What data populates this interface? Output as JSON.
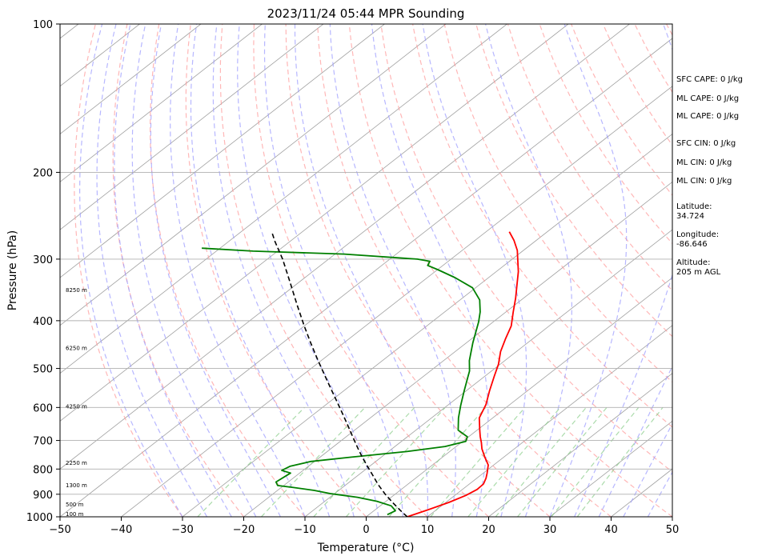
{
  "chart_data": {
    "type": "line",
    "title": "2023/11/24 05:44 MPR Sounding",
    "xlabel": "Temperature (°C)",
    "ylabel": "Pressure (hPa)",
    "xlim": [
      -50,
      50
    ],
    "ylim": [
      1000,
      100
    ],
    "y_scale": "log",
    "skew": "skew-T",
    "x_ticks": [
      "−50",
      "−40",
      "−30",
      "−20",
      "−10",
      "0",
      "10",
      "20",
      "30",
      "40",
      "50"
    ],
    "x_tick_values": [
      -50,
      -40,
      -30,
      -20,
      -10,
      0,
      10,
      20,
      30,
      40,
      50
    ],
    "y_ticks": [
      "100",
      "200",
      "300",
      "400",
      "500",
      "600",
      "700",
      "800",
      "900",
      "1000"
    ],
    "y_tick_values": [
      100,
      200,
      300,
      400,
      500,
      600,
      700,
      800,
      900,
      1000
    ],
    "grid": true,
    "colors": {
      "temperature": "#ff0000",
      "dewpoint": "#008000",
      "parcel": "#000000",
      "isotherm": "#a0a0a0",
      "dry_adiabat": "#ff9999",
      "moist_adiabat": "#9999ff",
      "mixing_ratio": "#88cc88"
    },
    "series": [
      {
        "key": "temperature",
        "points": [
          {
            "t": 6.7,
            "p": 1000
          },
          {
            "t": 8.5,
            "p": 970
          },
          {
            "t": 10.5,
            "p": 935
          },
          {
            "t": 11.8,
            "p": 905
          },
          {
            "t": 12.4,
            "p": 880
          },
          {
            "t": 12.3,
            "p": 858
          },
          {
            "t": 11.5,
            "p": 835
          },
          {
            "t": 10.6,
            "p": 815
          },
          {
            "t": 9.1,
            "p": 785
          },
          {
            "t": 7.0,
            "p": 758
          },
          {
            "t": 4.7,
            "p": 728
          },
          {
            "t": 3.3,
            "p": 707
          },
          {
            "t": 1.9,
            "p": 688
          },
          {
            "t": 0.5,
            "p": 668
          },
          {
            "t": -2.2,
            "p": 630
          },
          {
            "t": -3.9,
            "p": 592
          },
          {
            "t": -6.2,
            "p": 555
          },
          {
            "t": -8.5,
            "p": 518
          },
          {
            "t": -10.3,
            "p": 490
          },
          {
            "t": -12.6,
            "p": 462
          },
          {
            "t": -14.4,
            "p": 436
          },
          {
            "t": -16.2,
            "p": 410
          },
          {
            "t": -18.8,
            "p": 384
          },
          {
            "t": -21.3,
            "p": 360
          },
          {
            "t": -23.9,
            "p": 338
          },
          {
            "t": -26.4,
            "p": 318
          },
          {
            "t": -28.8,
            "p": 302
          },
          {
            "t": -31.0,
            "p": 288
          },
          {
            "t": -33.6,
            "p": 275
          },
          {
            "t": -36.2,
            "p": 264
          }
        ]
      },
      {
        "key": "dewpoint",
        "points": [
          {
            "t": 3.0,
            "p": 990
          },
          {
            "t": 3.5,
            "p": 972
          },
          {
            "t": 1.8,
            "p": 950
          },
          {
            "t": -1.5,
            "p": 930
          },
          {
            "t": -5.5,
            "p": 913
          },
          {
            "t": -10.5,
            "p": 898
          },
          {
            "t": -14.0,
            "p": 884
          },
          {
            "t": -18.0,
            "p": 872
          },
          {
            "t": -21.0,
            "p": 864
          },
          {
            "t": -22.0,
            "p": 850
          },
          {
            "t": -21.5,
            "p": 815
          },
          {
            "t": -23.5,
            "p": 805
          },
          {
            "t": -23.0,
            "p": 790
          },
          {
            "t": -20.6,
            "p": 772
          },
          {
            "t": -15.0,
            "p": 757
          },
          {
            "t": -7.0,
            "p": 737
          },
          {
            "t": -1.8,
            "p": 720
          },
          {
            "t": 0.5,
            "p": 703
          },
          {
            "t": -0.2,
            "p": 688
          },
          {
            "t": -3.1,
            "p": 667
          },
          {
            "t": -5.6,
            "p": 630
          },
          {
            "t": -7.8,
            "p": 595
          },
          {
            "t": -10.2,
            "p": 557
          },
          {
            "t": -12.5,
            "p": 522
          },
          {
            "t": -13.6,
            "p": 506
          },
          {
            "t": -15.8,
            "p": 482
          },
          {
            "t": -17.4,
            "p": 462
          },
          {
            "t": -19.0,
            "p": 443
          },
          {
            "t": -20.7,
            "p": 422
          },
          {
            "t": -22.4,
            "p": 402
          },
          {
            "t": -24.2,
            "p": 384
          },
          {
            "t": -26.8,
            "p": 363
          },
          {
            "t": -30.5,
            "p": 343
          },
          {
            "t": -35.5,
            "p": 327
          },
          {
            "t": -40.0,
            "p": 315
          },
          {
            "t": -42.5,
            "p": 309
          },
          {
            "t": -43.0,
            "p": 303
          },
          {
            "t": -45.5,
            "p": 300
          },
          {
            "t": -58.5,
            "p": 293
          },
          {
            "t": -74.0,
            "p": 289
          },
          {
            "t": -83.0,
            "p": 285
          }
        ]
      },
      {
        "key": "parcel",
        "points": [
          {
            "t": 6.7,
            "p": 1000
          },
          {
            "t": 4.2,
            "p": 970
          },
          {
            "t": 1.3,
            "p": 935
          },
          {
            "t": -1.6,
            "p": 900
          },
          {
            "t": -4.8,
            "p": 860
          },
          {
            "t": -7.9,
            "p": 820
          },
          {
            "t": -10.5,
            "p": 788
          },
          {
            "t": -13.1,
            "p": 757
          },
          {
            "t": -15.6,
            "p": 727
          },
          {
            "t": -18.5,
            "p": 693
          },
          {
            "t": -21.6,
            "p": 658
          },
          {
            "t": -24.6,
            "p": 626
          },
          {
            "t": -28.2,
            "p": 590
          },
          {
            "t": -32.5,
            "p": 550
          },
          {
            "t": -36.5,
            "p": 515
          },
          {
            "t": -41.0,
            "p": 478
          },
          {
            "t": -45.5,
            "p": 443
          },
          {
            "t": -50.0,
            "p": 410
          },
          {
            "t": -55.5,
            "p": 372
          },
          {
            "t": -61.5,
            "p": 334
          },
          {
            "t": -67.5,
            "p": 300
          },
          {
            "t": -72.5,
            "p": 276
          },
          {
            "t": -75.0,
            "p": 264
          }
        ]
      }
    ],
    "height_labels": [
      {
        "text": "8250 m",
        "p": 347
      },
      {
        "text": "6250 m",
        "p": 455
      },
      {
        "text": "4250 m",
        "p": 598
      },
      {
        "text": "2250 m",
        "p": 778
      },
      {
        "text": "1300 m",
        "p": 865
      },
      {
        "text": "500 m",
        "p": 946
      },
      {
        "text": "100 m",
        "p": 988
      }
    ],
    "annotations": [
      "SFC CAPE: 0 J/kg",
      "ML CAPE: 0 J/kg",
      "ML CAPE: 0 J/kg",
      "SFC CIN: 0 J/kg",
      "ML CIN: 0 J/kg",
      "ML CIN: 0 J/kg",
      "Latitude:",
      "34.724",
      "Longitude:",
      "-86.646",
      "Altitude:",
      "205 m AGL"
    ]
  }
}
